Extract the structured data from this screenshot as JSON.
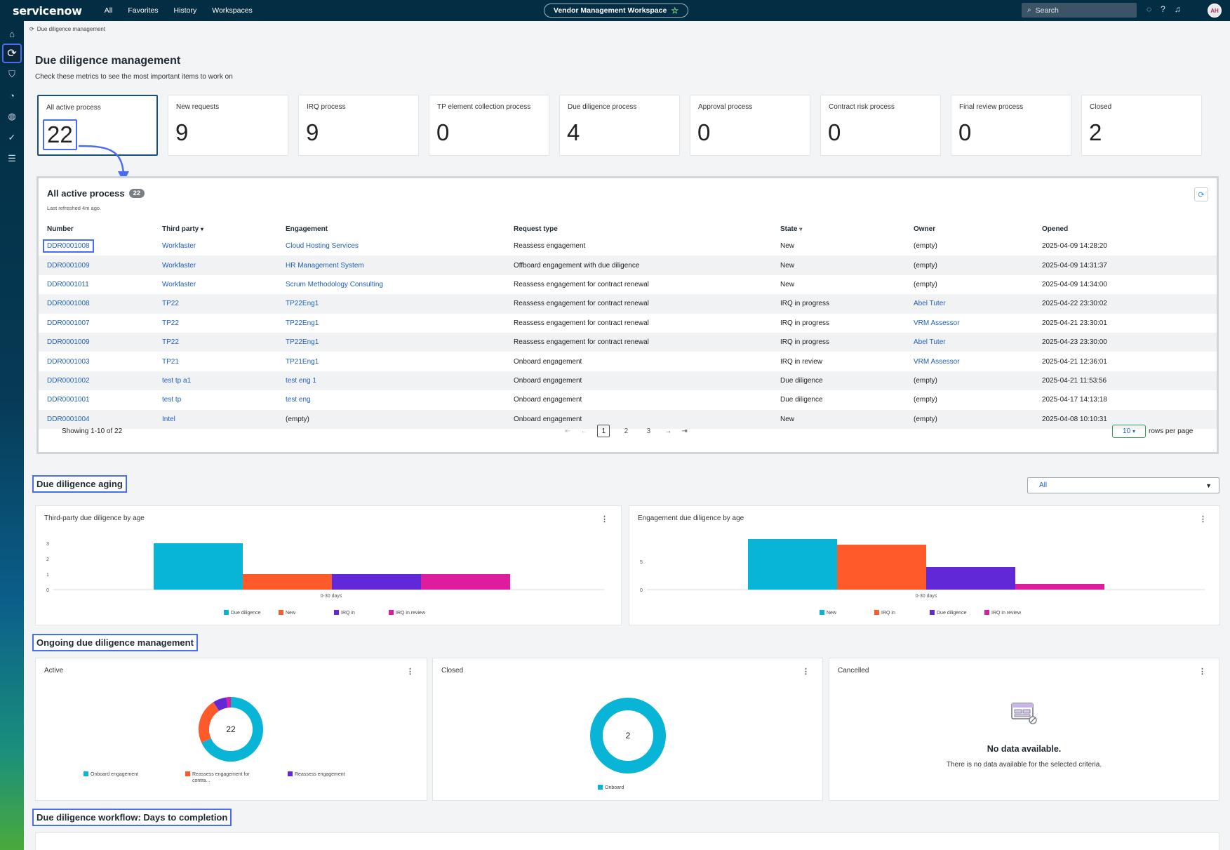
{
  "app": {
    "logo": "servicenow",
    "nav": [
      "All",
      "Favorites",
      "History",
      "Workspaces"
    ],
    "workspace_pill": "Vendor Management Workspace",
    "search_placeholder": "Search",
    "avatar_initials": "AH"
  },
  "breadcrumb": "Due diligence management",
  "page": {
    "title": "Due diligence management",
    "subtitle": "Check these metrics to see the most important items to work on"
  },
  "kpis": [
    {
      "label": "All active process",
      "value": "22"
    },
    {
      "label": "New requests",
      "value": "9"
    },
    {
      "label": "IRQ process",
      "value": "9"
    },
    {
      "label": "TP element collection process",
      "value": "0"
    },
    {
      "label": "Due diligence process",
      "value": "4"
    },
    {
      "label": "Approval process",
      "value": "0"
    },
    {
      "label": "Contract risk process",
      "value": "0"
    },
    {
      "label": "Final review process",
      "value": "0"
    },
    {
      "label": "Closed",
      "value": "2"
    }
  ],
  "table": {
    "title": "All active process",
    "count": "22",
    "refreshed": "Last refreshed 4m ago.",
    "columns": [
      "Number",
      "Third party",
      "Engagement",
      "Request type",
      "State",
      "Owner",
      "Opened"
    ],
    "rows": [
      [
        "DDR0001008",
        "Workfaster",
        "Cloud Hosting Services",
        "Reassess engagement",
        "New",
        "(empty)",
        "2025-04-09 14:28:20"
      ],
      [
        "DDR0001009",
        "Workfaster",
        "HR Management System",
        "Offboard engagement with due diligence",
        "New",
        "(empty)",
        "2025-04-09 14:31:37"
      ],
      [
        "DDR0001011",
        "Workfaster",
        "Scrum Methodology Consulting",
        "Reassess engagement for contract renewal",
        "New",
        "(empty)",
        "2025-04-09 14:34:00"
      ],
      [
        "DDR0001008",
        "TP22",
        "TP22Eng1",
        "Reassess engagement for contract renewal",
        "IRQ in progress",
        "Abel Tuter",
        "2025-04-22 23:30:02"
      ],
      [
        "DDR0001007",
        "TP22",
        "TP22Eng1",
        "Reassess engagement for contract renewal",
        "IRQ in progress",
        "VRM Assessor",
        "2025-04-21 23:30:01"
      ],
      [
        "DDR0001009",
        "TP22",
        "TP22Eng1",
        "Reassess engagement for contract renewal",
        "IRQ in progress",
        "Abel Tuter",
        "2025-04-23 23:30:00"
      ],
      [
        "DDR0001003",
        "TP21",
        "TP21Eng1",
        "Onboard engagement",
        "IRQ in review",
        "VRM Assessor",
        "2025-04-21 12:36:01"
      ],
      [
        "DDR0001002",
        "test tp a1",
        "test eng 1",
        "Onboard engagement",
        "Due diligence",
        "(empty)",
        "2025-04-21 11:53:56"
      ],
      [
        "DDR0001001",
        "test tp",
        "test eng",
        "Onboard engagement",
        "Due diligence",
        "(empty)",
        "2025-04-17 14:13:18"
      ],
      [
        "DDR0001004",
        "Intel",
        "(empty)",
        "Onboard engagement",
        "New",
        "(empty)",
        "2025-04-08 10:10:31"
      ]
    ],
    "showing": "Showing 1-10 of 22",
    "pages": [
      "1",
      "2",
      "3"
    ],
    "current_page": "1",
    "rows_per_page": "10",
    "rows_per_page_label": "rows per page"
  },
  "sections": {
    "aging": "Due diligence aging",
    "ongoing": "Ongoing due diligence management",
    "workflow": "Due diligence workflow: Days to completion"
  },
  "aging_filter": "All",
  "colors": {
    "cyan": "#08b5d7",
    "orange": "#ff5a29",
    "purple": "#6128d8",
    "magenta": "#dd1d9e",
    "accent": "#4a6cf0",
    "link": "#1e5fbf"
  },
  "chart_data": [
    {
      "type": "bar",
      "title": "Third-party due diligence by age",
      "categories": [
        "0-30 days"
      ],
      "series": [
        {
          "name": "Due diligence",
          "values": [
            3
          ]
        },
        {
          "name": "New",
          "values": [
            1
          ]
        },
        {
          "name": "IRQ in",
          "values": [
            1
          ]
        },
        {
          "name": "IRQ in review",
          "values": [
            1
          ]
        }
      ],
      "ylim": [
        0,
        3
      ],
      "yticks": [
        "0",
        "1",
        "2",
        "3"
      ],
      "legend": "bottom"
    },
    {
      "type": "bar",
      "title": "Engagement due diligence by age",
      "categories": [
        "0-30 days"
      ],
      "series": [
        {
          "name": "New",
          "values": [
            9
          ]
        },
        {
          "name": "IRQ in",
          "values": [
            8
          ]
        },
        {
          "name": "Due diligence",
          "values": [
            4
          ]
        },
        {
          "name": "IRQ in review",
          "values": [
            1
          ]
        }
      ],
      "ylim": [
        0,
        9
      ],
      "yticks": [
        "0",
        "5"
      ],
      "legend": "bottom"
    },
    {
      "type": "pie",
      "title": "Active",
      "center_label": "22",
      "slices": [
        {
          "name": "Onboard engagement",
          "value": 15
        },
        {
          "name": "Reassess engagement for contra...",
          "value": 5
        },
        {
          "name": "Reassess engagement",
          "value": 1.5
        },
        {
          "name": "",
          "value": 0.5
        }
      ],
      "legend": "bottom"
    },
    {
      "type": "pie",
      "title": "Closed",
      "center_label": "2",
      "slices": [
        {
          "name": "Onboard",
          "value": 2
        }
      ],
      "legend": "bottom"
    }
  ],
  "cancelled_card": {
    "title": "Cancelled",
    "nodata_title": "No data available.",
    "nodata_sub": "There is no data available for the selected criteria."
  }
}
